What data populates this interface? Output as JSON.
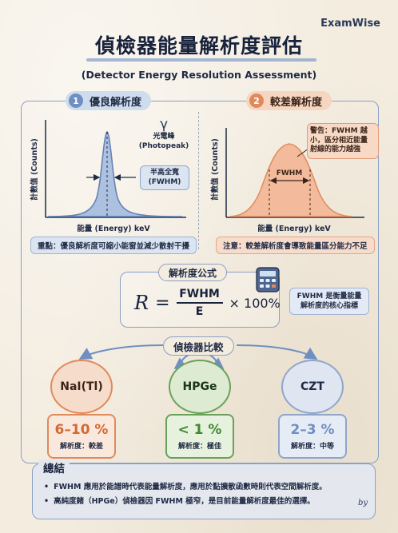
{
  "brand": "ExamWise",
  "title": "偵檢器能量解析度評估",
  "subtitle": "(Detector Energy Resolution Assessment)",
  "panels": {
    "good": {
      "number": "1",
      "title": "優良解析度",
      "ylabel": "計數值 (Counts)",
      "xlabel": "能量 (Energy) keV",
      "gamma_symbol": "γ",
      "photopeak_label": "光電峰",
      "photopeak_en": "(Photopeak)",
      "fwhm_callout_line1": "半高全寬",
      "fwhm_callout_line2": "(FWHM)",
      "note": "重點：優良解析度可縮小能窗並減少散射干擾",
      "color": "#6f8fc2"
    },
    "bad": {
      "number": "2",
      "title": "較差解析度",
      "ylabel": "計數值 (Counts)",
      "xlabel": "能量 (Energy) keV",
      "fwhm_label": "FWHM",
      "warning_line1": "警告：FWHM 越",
      "warning_line2": "小，區分相近能量",
      "warning_line3": "射線的能力越強",
      "note": "注意：較差解析度會導致能量區分能力不足",
      "color": "#e08a5c"
    }
  },
  "formula": {
    "heading": "解析度公式",
    "lhs": "R",
    "equals": "=",
    "numerator": "FWHM",
    "denominator": "E",
    "multiplier": "× 100%",
    "note_line1": "FWHM 是衡量能量",
    "note_line2": "解析度的核心指標"
  },
  "comparison": {
    "heading": "偵檢器比較",
    "detectors": [
      {
        "name": "NaI(Tl)",
        "value": "6–10 %",
        "level": "解析度：較差",
        "color": "#e08a5c"
      },
      {
        "name": "HPGe",
        "value": "< 1 %",
        "level": "解析度：極佳",
        "color": "#6aa15a"
      },
      {
        "name": "CZT",
        "value": "2–3 %",
        "level": "解析度：中等",
        "color": "#8fa6c9"
      }
    ]
  },
  "summary": {
    "heading": "總結",
    "items": [
      "FWHM 應用於能譜時代表能量解析度，應用於點擴散函數時則代表空間解析度。",
      "高純度鍺（HPGe）偵檢器因 FWHM 極窄，是目前能量解析度最佳的選擇。"
    ]
  },
  "signature": "by"
}
